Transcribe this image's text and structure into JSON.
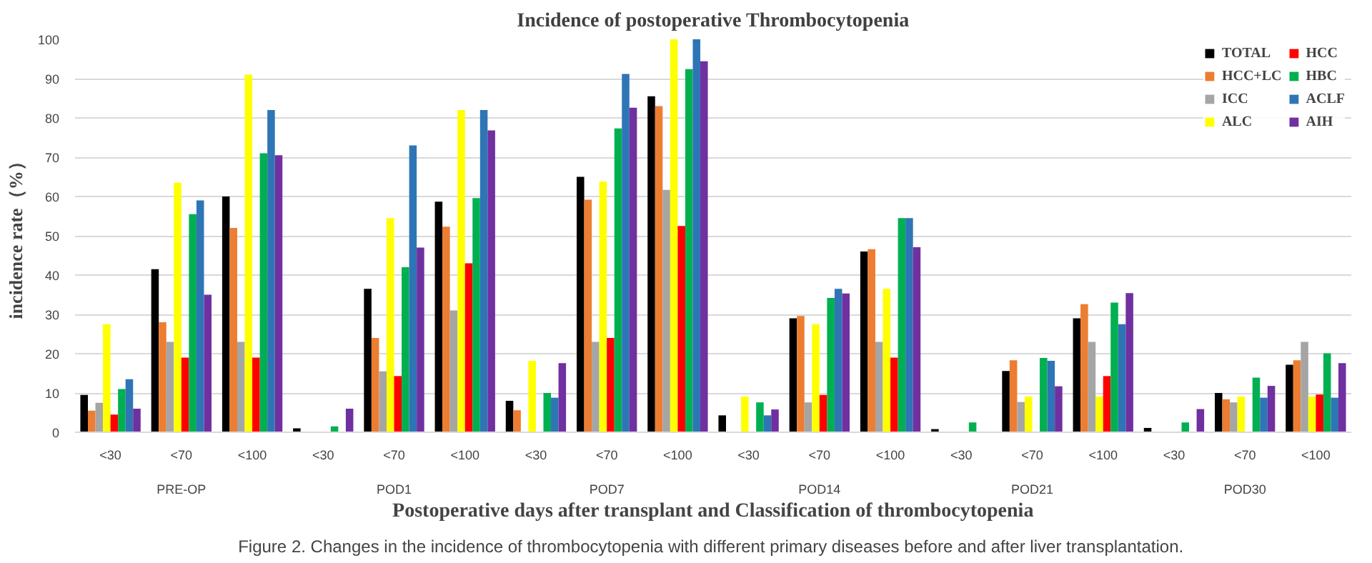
{
  "chart_data": {
    "type": "bar",
    "title": "Incidence of postoperative Thrombocytopenia",
    "xlabel": "Postoperative days after transplant and Classification of thrombocytopenia",
    "ylabel": "incidence rate（%）",
    "categories": [
      "<30",
      "<70",
      "<100",
      "<30",
      "<70",
      "<100",
      "<30",
      "<70",
      "<100",
      "<30",
      "<70",
      "<100",
      "<30",
      "<70",
      "<100",
      "<30",
      "<70",
      "<100"
    ],
    "annotations": [
      "PRE-OP",
      "POD1",
      "POD7",
      "POD14",
      "POD21",
      "POD30",
      "Figure 2.  Changes in the incidence of thrombocytopenia with different primary diseases before and after liver transplantation."
    ],
    "series": [
      {
        "name": "TOTAL",
        "color": "#000000",
        "values": [
          9.5,
          41.5,
          60,
          1,
          36.5,
          58.7,
          8,
          65,
          85.5,
          4.3,
          29,
          46,
          0.8,
          15.6,
          29,
          1.1,
          10,
          17.2
        ]
      },
      {
        "name": "HCC+LC",
        "color": "#ed7d31",
        "values": [
          5.5,
          28,
          52,
          0,
          24,
          52.3,
          5.6,
          59.2,
          83,
          0,
          29.6,
          46.6,
          0,
          18.3,
          32.6,
          0,
          8.4,
          18.3
        ]
      },
      {
        "name": "ICC",
        "color": "#a5a5a5",
        "values": [
          7.5,
          23,
          23,
          0,
          15.5,
          31,
          0,
          23,
          61.7,
          0,
          7.6,
          23,
          0,
          7.7,
          23,
          0,
          7.6,
          23
        ]
      },
      {
        "name": "ALC",
        "color": "#ffff00",
        "values": [
          27.5,
          63.5,
          91,
          0,
          54.5,
          82,
          18.2,
          63.8,
          100,
          9.1,
          27.5,
          36.5,
          0,
          9.1,
          9.1,
          0,
          9.1,
          9.1
        ]
      },
      {
        "name": "HCC",
        "color": "#ff0000",
        "values": [
          4.5,
          19,
          19,
          0,
          14.3,
          43,
          0,
          24,
          52.5,
          0,
          9.5,
          19,
          0,
          0,
          14.3,
          0,
          0,
          9.6
        ]
      },
      {
        "name": "HBC",
        "color": "#00b050",
        "values": [
          11,
          55.5,
          71,
          1.5,
          42,
          59.6,
          10,
          77.3,
          92.4,
          7.6,
          34.2,
          54.5,
          2.5,
          18.9,
          33,
          2.5,
          13.9,
          20.1
        ]
      },
      {
        "name": "ACLF",
        "color": "#2e75b6",
        "values": [
          13.5,
          59,
          82,
          0,
          73,
          82,
          8.8,
          91.2,
          100,
          4.3,
          36.5,
          54.5,
          0,
          18.2,
          27.5,
          0,
          8.8,
          8.8
        ]
      },
      {
        "name": "AIH",
        "color": "#7030a0",
        "values": [
          6,
          35,
          70.5,
          6,
          47,
          76.8,
          17.6,
          82.6,
          94.4,
          5.8,
          35.3,
          47.1,
          0,
          11.7,
          35.4,
          5.9,
          11.8,
          17.6
        ]
      }
    ],
    "ylim": [
      0,
      100
    ],
    "yticks": [
      0,
      10,
      20,
      30,
      40,
      50,
      60,
      70,
      80,
      90,
      100
    ],
    "grid": "y",
    "legend": "top right"
  }
}
